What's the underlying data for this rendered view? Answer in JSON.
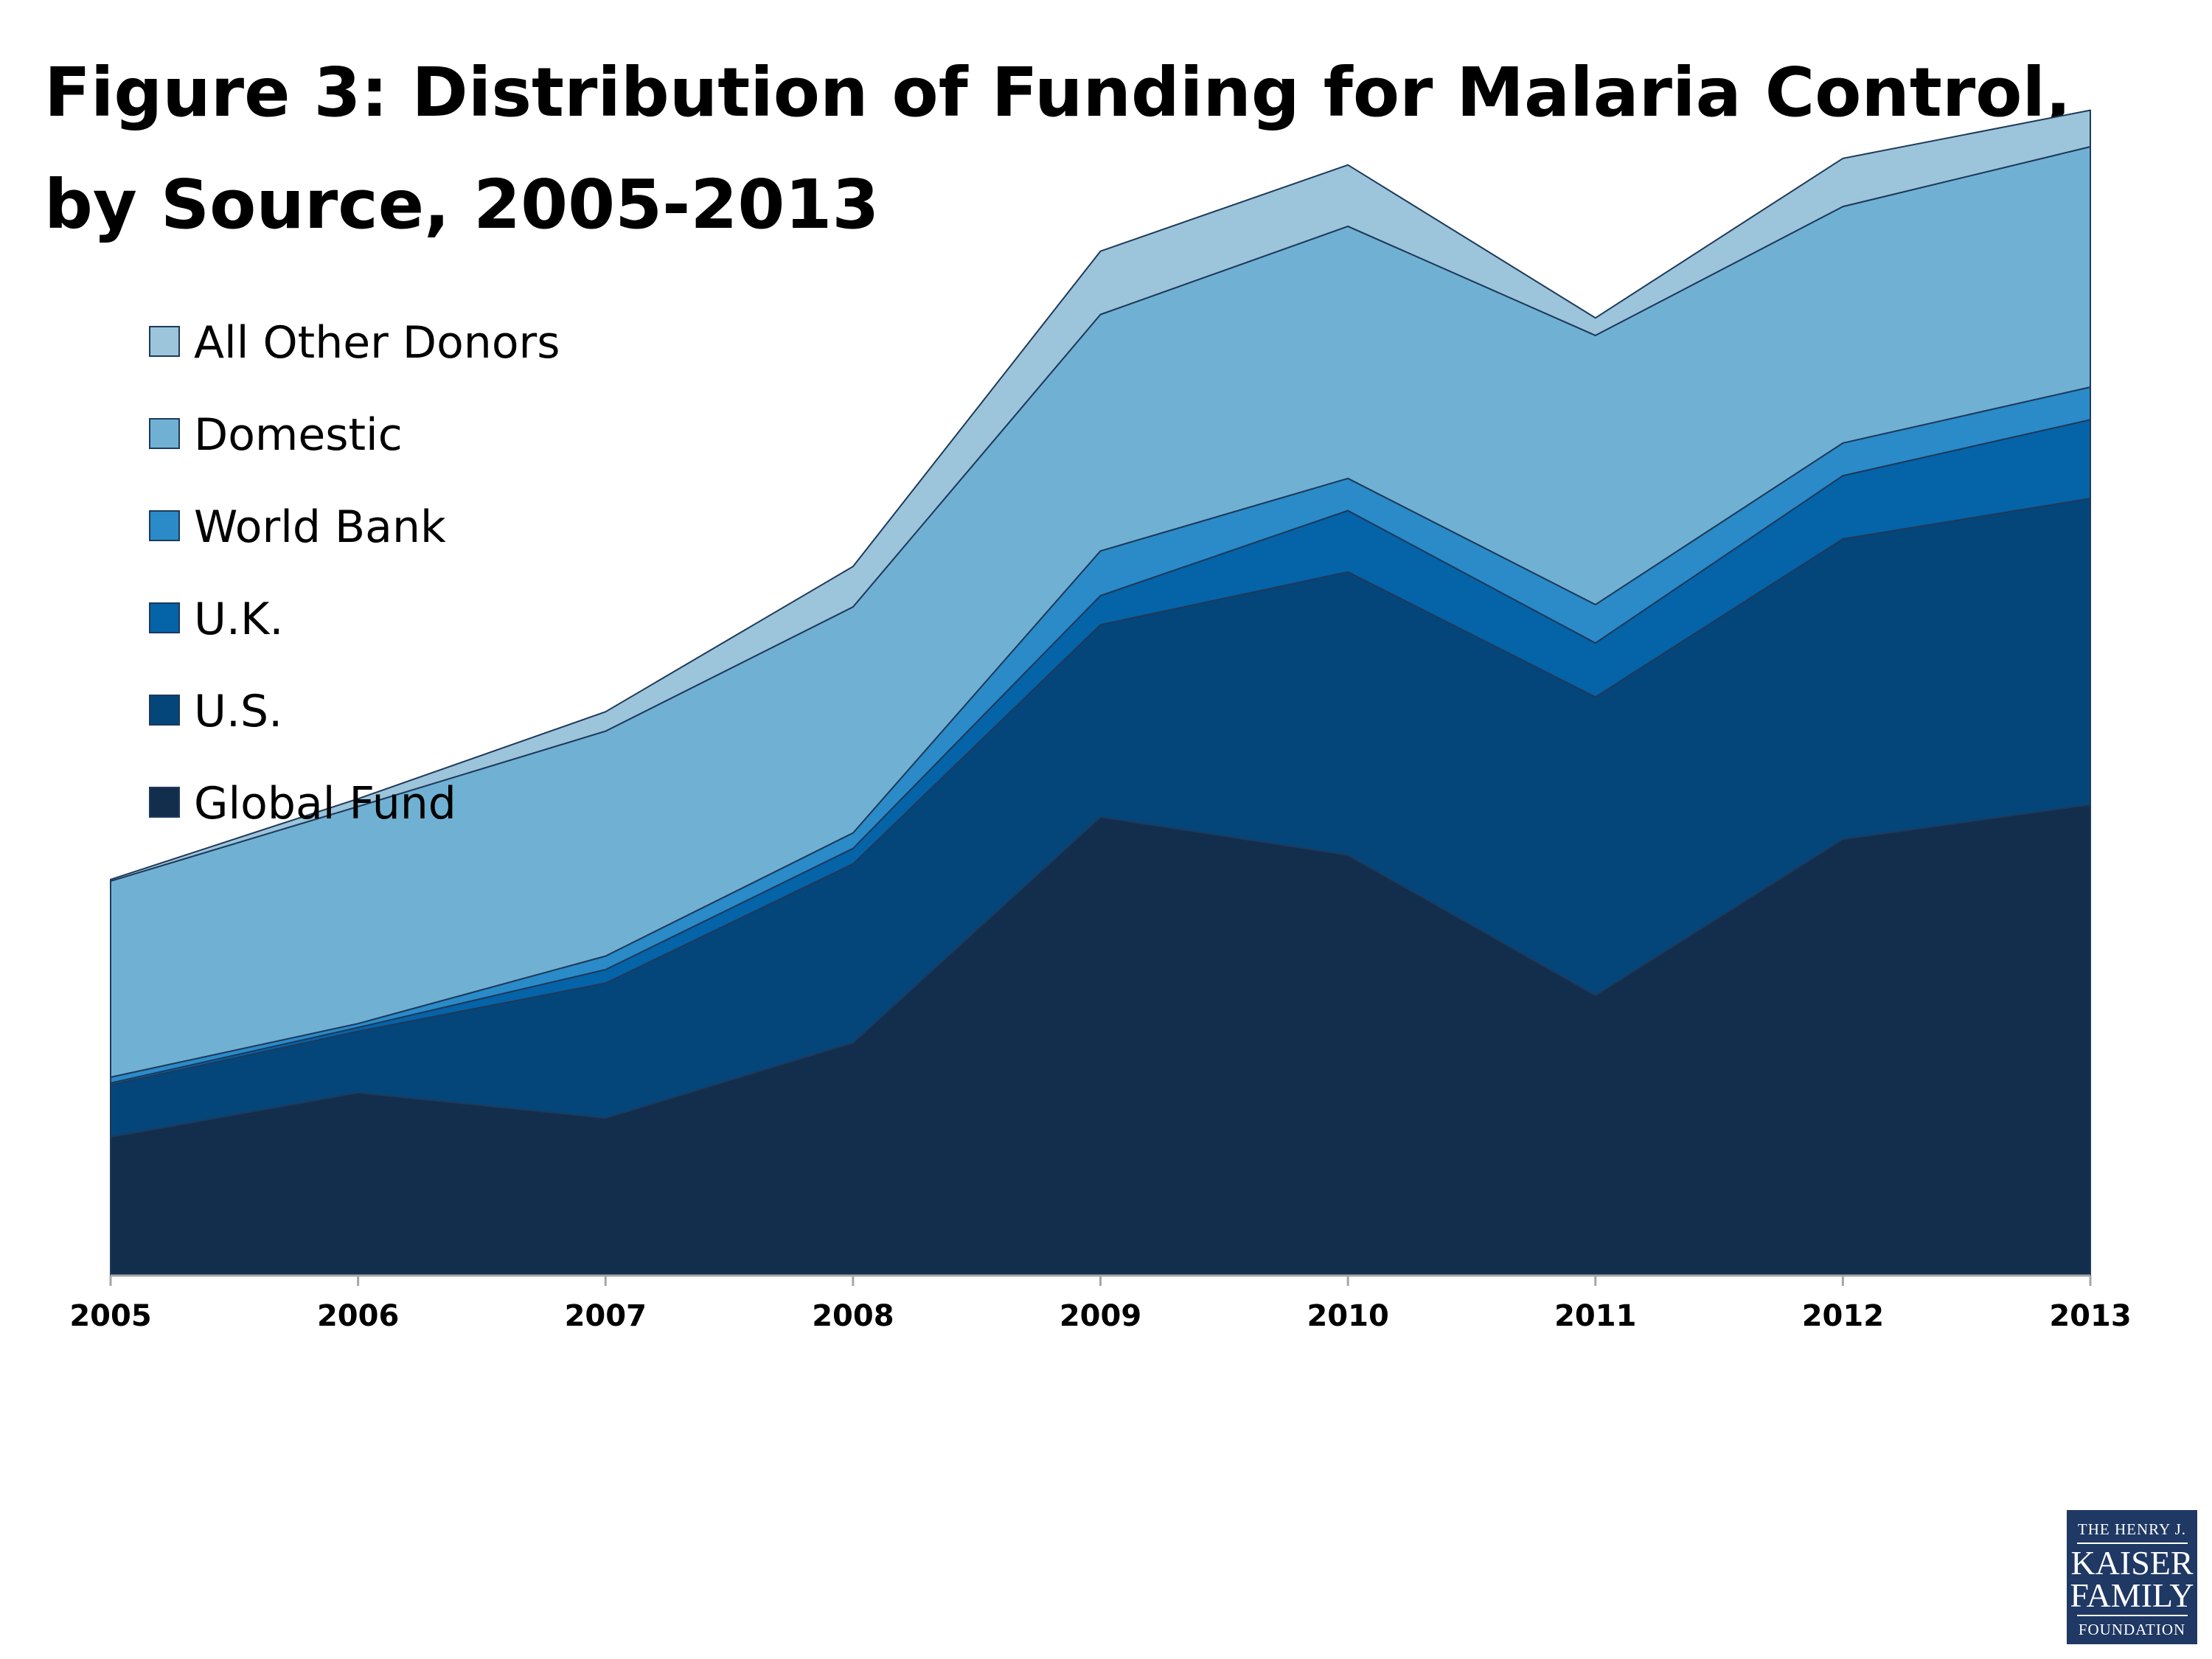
{
  "title": "Figure 3: Distribution of Funding for Malaria Control, by Source, 2005-2013",
  "logo": {
    "line1": "THE HENRY J.",
    "line2": "KAISER",
    "line3": "FAMILY",
    "line4": "FOUNDATION"
  },
  "chart_data": {
    "type": "area",
    "stacked": true,
    "title": "Figure 3: Distribution of Funding for Malaria Control, by Source, 2005-2013",
    "xlabel": "",
    "ylabel": "",
    "categories": [
      "2005",
      "2006",
      "2007",
      "2008",
      "2009",
      "2010",
      "2011",
      "2012",
      "2013"
    ],
    "ylim": [
      0,
      3000
    ],
    "grid": false,
    "legend_position": "top-left",
    "series": [
      {
        "name": "Global Fund",
        "color": "#132e4d",
        "values": [
          357,
          471,
          406,
          600,
          1181,
          1083,
          722,
          1124,
          1213
        ]
      },
      {
        "name": "U.S.",
        "color": "#04467a",
        "values": [
          134,
          158,
          347,
          460,
          495,
          729,
          768,
          773,
          788
        ]
      },
      {
        "name": "U.K.",
        "color": "#0563a8",
        "values": [
          5,
          10,
          35,
          40,
          75,
          158,
          139,
          163,
          203
        ]
      },
      {
        "name": "World Bank",
        "color": "#2a8bc8",
        "values": [
          15,
          10,
          35,
          40,
          115,
          83,
          99,
          84,
          84
        ]
      },
      {
        "name": "Domestic",
        "color": "#70b1d3",
        "values": [
          505,
          559,
          579,
          582,
          609,
          649,
          693,
          609,
          619
        ]
      },
      {
        "name": "All Other Donors",
        "color": "#9cc4da",
        "values": [
          4,
          20,
          50,
          104,
          163,
          158,
          45,
          124,
          94
        ]
      }
    ]
  }
}
